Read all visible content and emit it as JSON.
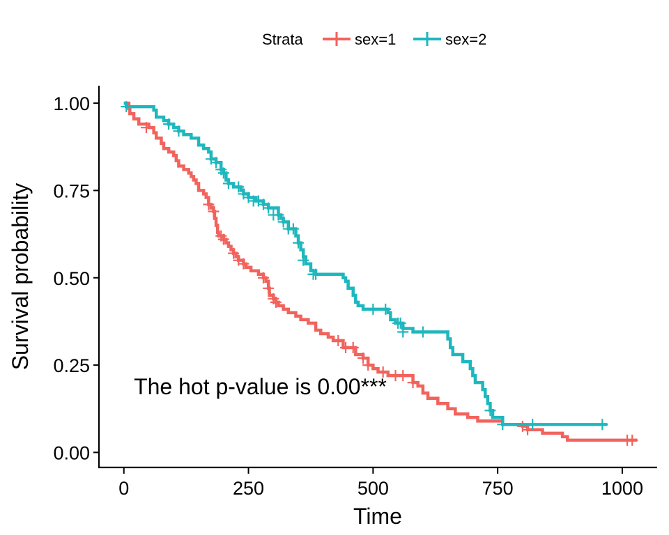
{
  "chart_data": {
    "type": "line",
    "xlabel": "Time",
    "ylabel": "Survival probability",
    "xlim": [
      -50,
      1070
    ],
    "ylim": [
      -0.045,
      1.05
    ],
    "xticks": [
      0,
      250,
      500,
      750,
      1000
    ],
    "xtick_labels": [
      "0",
      "250",
      "500",
      "750",
      "1000"
    ],
    "yticks": [
      0,
      0.25,
      0.5,
      0.75,
      1.0
    ],
    "ytick_labels": [
      "0.00",
      "0.25",
      "0.50",
      "0.75",
      "1.00"
    ],
    "grid": false,
    "legend": {
      "title": "Strata",
      "position": "top"
    },
    "annotation": {
      "text": "The hot p-value is 0.00***",
      "x": 20,
      "y": 0.19
    },
    "series": [
      {
        "name": "sex=1",
        "color": "#F1635D",
        "steps": [
          [
            0,
            1.0
          ],
          [
            10,
            0.985
          ],
          [
            12,
            0.97
          ],
          [
            20,
            0.955
          ],
          [
            30,
            0.94
          ],
          [
            50,
            0.93
          ],
          [
            60,
            0.915
          ],
          [
            65,
            0.9
          ],
          [
            75,
            0.885
          ],
          [
            80,
            0.87
          ],
          [
            90,
            0.86
          ],
          [
            100,
            0.85
          ],
          [
            105,
            0.835
          ],
          [
            110,
            0.82
          ],
          [
            120,
            0.81
          ],
          [
            130,
            0.8
          ],
          [
            135,
            0.79
          ],
          [
            140,
            0.78
          ],
          [
            145,
            0.77
          ],
          [
            150,
            0.75
          ],
          [
            160,
            0.74
          ],
          [
            165,
            0.73
          ],
          [
            170,
            0.71
          ],
          [
            175,
            0.7
          ],
          [
            180,
            0.69
          ],
          [
            182,
            0.67
          ],
          [
            185,
            0.65
          ],
          [
            188,
            0.63
          ],
          [
            190,
            0.62
          ],
          [
            200,
            0.61
          ],
          [
            205,
            0.6
          ],
          [
            210,
            0.59
          ],
          [
            215,
            0.58
          ],
          [
            220,
            0.57
          ],
          [
            225,
            0.56
          ],
          [
            230,
            0.55
          ],
          [
            240,
            0.54
          ],
          [
            245,
            0.53
          ],
          [
            255,
            0.52
          ],
          [
            270,
            0.51
          ],
          [
            280,
            0.5
          ],
          [
            285,
            0.49
          ],
          [
            290,
            0.47
          ],
          [
            292,
            0.45
          ],
          [
            300,
            0.44
          ],
          [
            305,
            0.43
          ],
          [
            310,
            0.42
          ],
          [
            320,
            0.41
          ],
          [
            330,
            0.4
          ],
          [
            345,
            0.39
          ],
          [
            355,
            0.38
          ],
          [
            370,
            0.37
          ],
          [
            385,
            0.35
          ],
          [
            395,
            0.34
          ],
          [
            410,
            0.33
          ],
          [
            420,
            0.32
          ],
          [
            440,
            0.3
          ],
          [
            465,
            0.28
          ],
          [
            480,
            0.27
          ],
          [
            490,
            0.25
          ],
          [
            500,
            0.24
          ],
          [
            510,
            0.23
          ],
          [
            530,
            0.22
          ],
          [
            580,
            0.2
          ],
          [
            590,
            0.19
          ],
          [
            600,
            0.17
          ],
          [
            610,
            0.155
          ],
          [
            630,
            0.14
          ],
          [
            650,
            0.125
          ],
          [
            665,
            0.11
          ],
          [
            690,
            0.1
          ],
          [
            710,
            0.09
          ],
          [
            760,
            0.08
          ],
          [
            800,
            0.075
          ],
          [
            810,
            0.065
          ],
          [
            840,
            0.055
          ],
          [
            880,
            0.045
          ],
          [
            890,
            0.035
          ],
          [
            1030,
            0.035
          ]
        ],
        "censored": [
          [
            45,
            0.93
          ],
          [
            170,
            0.71
          ],
          [
            180,
            0.69
          ],
          [
            195,
            0.62
          ],
          [
            200,
            0.61
          ],
          [
            220,
            0.57
          ],
          [
            230,
            0.55
          ],
          [
            240,
            0.54
          ],
          [
            280,
            0.5
          ],
          [
            290,
            0.47
          ],
          [
            300,
            0.44
          ],
          [
            305,
            0.43
          ],
          [
            430,
            0.32
          ],
          [
            445,
            0.3
          ],
          [
            460,
            0.3
          ],
          [
            480,
            0.27
          ],
          [
            490,
            0.25
          ],
          [
            520,
            0.23
          ],
          [
            545,
            0.22
          ],
          [
            560,
            0.22
          ],
          [
            580,
            0.2
          ],
          [
            800,
            0.075
          ],
          [
            810,
            0.065
          ],
          [
            1010,
            0.035
          ],
          [
            1020,
            0.035
          ]
        ]
      },
      {
        "name": "sex=2",
        "color": "#1EB7BD",
        "steps": [
          [
            0,
            1.0
          ],
          [
            5,
            0.99
          ],
          [
            60,
            0.98
          ],
          [
            65,
            0.96
          ],
          [
            80,
            0.95
          ],
          [
            90,
            0.94
          ],
          [
            100,
            0.93
          ],
          [
            110,
            0.92
          ],
          [
            120,
            0.91
          ],
          [
            135,
            0.9
          ],
          [
            150,
            0.88
          ],
          [
            160,
            0.87
          ],
          [
            170,
            0.86
          ],
          [
            175,
            0.84
          ],
          [
            185,
            0.83
          ],
          [
            195,
            0.81
          ],
          [
            200,
            0.8
          ],
          [
            205,
            0.78
          ],
          [
            210,
            0.77
          ],
          [
            220,
            0.76
          ],
          [
            235,
            0.75
          ],
          [
            240,
            0.74
          ],
          [
            250,
            0.73
          ],
          [
            265,
            0.72
          ],
          [
            280,
            0.71
          ],
          [
            290,
            0.7
          ],
          [
            310,
            0.68
          ],
          [
            315,
            0.67
          ],
          [
            320,
            0.66
          ],
          [
            330,
            0.64
          ],
          [
            345,
            0.62
          ],
          [
            350,
            0.6
          ],
          [
            355,
            0.58
          ],
          [
            360,
            0.56
          ],
          [
            365,
            0.54
          ],
          [
            375,
            0.52
          ],
          [
            385,
            0.51
          ],
          [
            440,
            0.5
          ],
          [
            445,
            0.49
          ],
          [
            450,
            0.47
          ],
          [
            460,
            0.45
          ],
          [
            465,
            0.43
          ],
          [
            470,
            0.42
          ],
          [
            480,
            0.41
          ],
          [
            530,
            0.4
          ],
          [
            535,
            0.38
          ],
          [
            545,
            0.37
          ],
          [
            560,
            0.355
          ],
          [
            580,
            0.345
          ],
          [
            650,
            0.325
          ],
          [
            655,
            0.3
          ],
          [
            660,
            0.28
          ],
          [
            680,
            0.26
          ],
          [
            695,
            0.24
          ],
          [
            700,
            0.22
          ],
          [
            705,
            0.2
          ],
          [
            720,
            0.18
          ],
          [
            725,
            0.16
          ],
          [
            730,
            0.14
          ],
          [
            735,
            0.12
          ],
          [
            740,
            0.1
          ],
          [
            760,
            0.08
          ],
          [
            970,
            0.08
          ]
        ],
        "censored": [
          [
            5,
            0.99
          ],
          [
            90,
            0.94
          ],
          [
            110,
            0.92
          ],
          [
            175,
            0.84
          ],
          [
            185,
            0.83
          ],
          [
            195,
            0.81
          ],
          [
            200,
            0.8
          ],
          [
            210,
            0.77
          ],
          [
            230,
            0.76
          ],
          [
            240,
            0.74
          ],
          [
            250,
            0.73
          ],
          [
            260,
            0.72
          ],
          [
            270,
            0.72
          ],
          [
            280,
            0.71
          ],
          [
            290,
            0.7
          ],
          [
            300,
            0.68
          ],
          [
            310,
            0.68
          ],
          [
            320,
            0.66
          ],
          [
            330,
            0.64
          ],
          [
            340,
            0.64
          ],
          [
            350,
            0.6
          ],
          [
            360,
            0.55
          ],
          [
            380,
            0.51
          ],
          [
            385,
            0.51
          ],
          [
            500,
            0.41
          ],
          [
            525,
            0.41
          ],
          [
            550,
            0.37
          ],
          [
            555,
            0.37
          ],
          [
            560,
            0.345
          ],
          [
            600,
            0.345
          ],
          [
            735,
            0.12
          ],
          [
            760,
            0.08
          ],
          [
            820,
            0.08
          ],
          [
            960,
            0.08
          ]
        ]
      }
    ]
  }
}
